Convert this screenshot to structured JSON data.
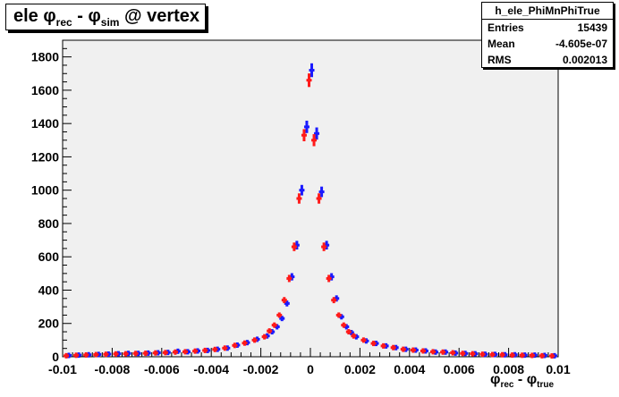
{
  "title": {
    "main": "ele φ",
    "sub1": "rec",
    "mid": " - φ",
    "sub2": "sim",
    "tail": " @ vertex"
  },
  "stats": {
    "name": "h_ele_PhiMnPhiTrue",
    "rows": [
      {
        "label": "Entries",
        "value": "15439"
      },
      {
        "label": "Mean",
        "value": "-4.605e-07"
      },
      {
        "label": "RMS",
        "value": "0.002013"
      }
    ]
  },
  "xaxis_label": {
    "a": "φ",
    "asub": "rec",
    "mid": " - φ",
    "bsub": "true"
  },
  "colors": {
    "frame_bg": "#f0f0f0",
    "series1": "#1a1aff",
    "series2": "#ff1a1a"
  },
  "chart_data": {
    "type": "scatter",
    "xlim": [
      -0.01,
      0.01
    ],
    "ylim": [
      0,
      1900
    ],
    "xticks": [
      "-0.01",
      "-0.008",
      "-0.006",
      "-0.004",
      "-0.002",
      "0",
      "0.002",
      "0.004",
      "0.006",
      "0.008",
      "0.01"
    ],
    "yticks": [
      "0",
      "200",
      "400",
      "600",
      "800",
      "1000",
      "1200",
      "1400",
      "1600",
      "1800"
    ],
    "grid": false,
    "series": [
      {
        "x": [
          -0.0098,
          -0.0094,
          -0.009,
          -0.0086,
          -0.0082,
          -0.0078,
          -0.0074,
          -0.007,
          -0.0066,
          -0.0062,
          -0.0058,
          -0.0054,
          -0.005,
          -0.0046,
          -0.0042,
          -0.0038,
          -0.0034,
          -0.003,
          -0.0026,
          -0.0022,
          -0.0018,
          -0.0016,
          -0.0014,
          -0.0012,
          -0.001,
          -0.0008,
          -0.0006,
          -0.0004,
          -0.0002,
          0.0,
          0.0002,
          0.0004,
          0.0006,
          0.0008,
          0.001,
          0.0012,
          0.0014,
          0.0016,
          0.0018,
          0.0022,
          0.0026,
          0.003,
          0.0034,
          0.0038,
          0.0042,
          0.0046,
          0.005,
          0.0054,
          0.0058,
          0.0062,
          0.0066,
          0.007,
          0.0074,
          0.0078,
          0.0082,
          0.0086,
          0.009,
          0.0094,
          0.0098
        ],
        "y": [
          8,
          10,
          12,
          14,
          16,
          18,
          20,
          20,
          22,
          24,
          26,
          33,
          30,
          35,
          38,
          45,
          52,
          70,
          85,
          105,
          125,
          150,
          180,
          230,
          320,
          480,
          670,
          1000,
          1380,
          1720,
          1340,
          990,
          670,
          480,
          350,
          240,
          180,
          145,
          120,
          95,
          80,
          65,
          55,
          45,
          40,
          35,
          28,
          28,
          22,
          20,
          18,
          15,
          14,
          12,
          12,
          10,
          10,
          8,
          6
        ]
      },
      {
        "x": [
          -0.0098,
          -0.0094,
          -0.009,
          -0.0086,
          -0.0082,
          -0.0078,
          -0.0074,
          -0.007,
          -0.0066,
          -0.0062,
          -0.0058,
          -0.0054,
          -0.005,
          -0.0046,
          -0.0042,
          -0.0038,
          -0.0034,
          -0.003,
          -0.0026,
          -0.0022,
          -0.0018,
          -0.0016,
          -0.0014,
          -0.0012,
          -0.001,
          -0.0008,
          -0.0006,
          -0.0004,
          -0.0002,
          0.0,
          0.0002,
          0.0004,
          0.0006,
          0.0008,
          0.001,
          0.0012,
          0.0014,
          0.0016,
          0.0018,
          0.0022,
          0.0026,
          0.003,
          0.0034,
          0.0038,
          0.0042,
          0.0046,
          0.005,
          0.0054,
          0.0058,
          0.0062,
          0.0066,
          0.007,
          0.0074,
          0.0078,
          0.0082,
          0.0086,
          0.009,
          0.0094,
          0.0098
        ],
        "y": [
          6,
          9,
          11,
          13,
          15,
          17,
          18,
          20,
          21,
          23,
          25,
          28,
          30,
          34,
          38,
          44,
          52,
          68,
          82,
          100,
          120,
          155,
          190,
          250,
          340,
          470,
          660,
          950,
          1330,
          1660,
          1300,
          950,
          660,
          470,
          340,
          250,
          190,
          150,
          125,
          100,
          80,
          65,
          55,
          45,
          40,
          35,
          30,
          28,
          24,
          20,
          18,
          15,
          13,
          12,
          10,
          9,
          8,
          6,
          5
        ]
      }
    ]
  }
}
